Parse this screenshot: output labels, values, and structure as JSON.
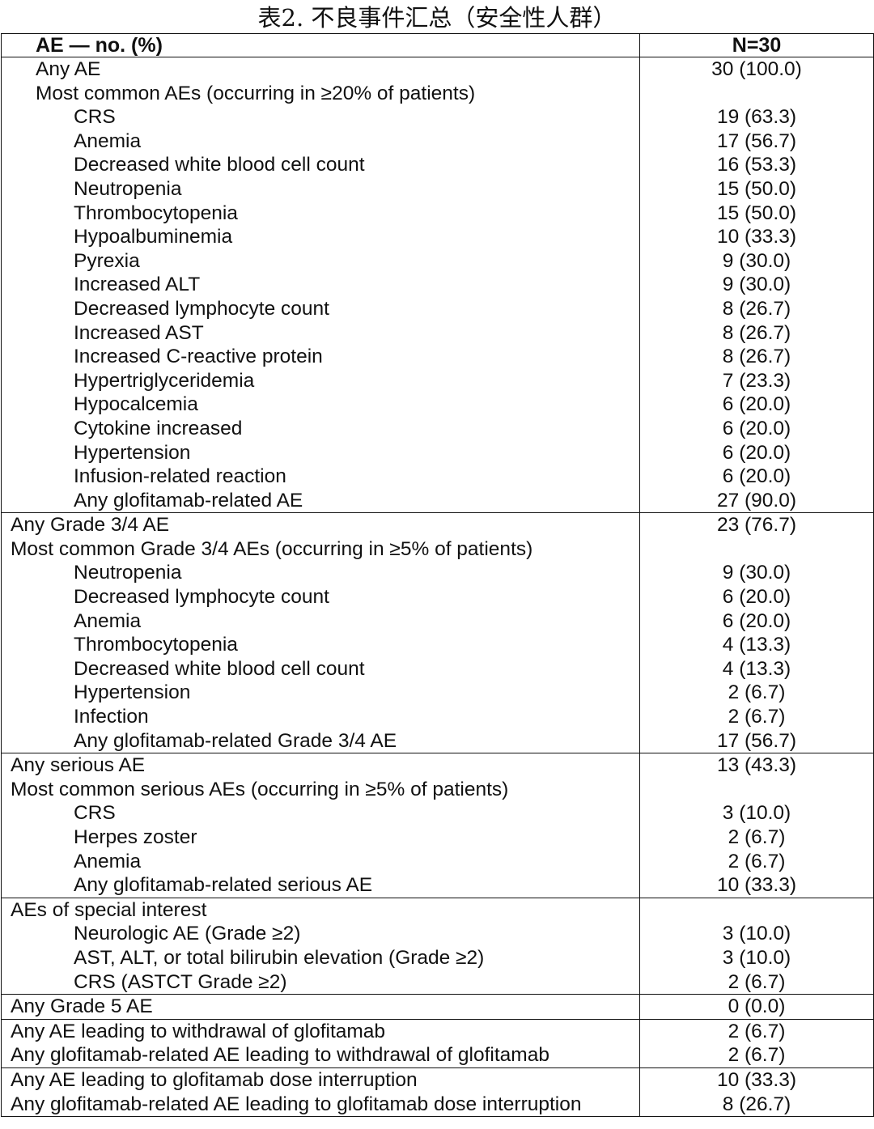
{
  "title": "表2. 不良事件汇总（安全性人群）",
  "header": {
    "col1": "AE — no. (%)",
    "col2": "N=30"
  },
  "sections": [
    {
      "id": "overall",
      "rows": [
        {
          "label": "Any AE",
          "value": "30 (100.0)",
          "indent": 1
        },
        {
          "label": "Most common AEs (occurring in ≥20% of patients)",
          "value": "",
          "indent": 1
        },
        {
          "label": "CRS",
          "value": "19 (63.3)",
          "indent": 2
        },
        {
          "label": "Anemia",
          "value": "17 (56.7)",
          "indent": 2
        },
        {
          "label": "Decreased white blood cell count",
          "value": "16 (53.3)",
          "indent": 2
        },
        {
          "label": "Neutropenia",
          "value": "15 (50.0)",
          "indent": 2
        },
        {
          "label": "Thrombocytopenia",
          "value": "15 (50.0)",
          "indent": 2
        },
        {
          "label": "Hypoalbuminemia",
          "value": "10 (33.3)",
          "indent": 2
        },
        {
          "label": "Pyrexia",
          "value": "9 (30.0)",
          "indent": 2
        },
        {
          "label": "Increased ALT",
          "value": "9 (30.0)",
          "indent": 2
        },
        {
          "label": "Decreased lymphocyte count",
          "value": "8 (26.7)",
          "indent": 2
        },
        {
          "label": "Increased AST",
          "value": "8 (26.7)",
          "indent": 2
        },
        {
          "label": "Increased C-reactive protein",
          "value": "8 (26.7)",
          "indent": 2
        },
        {
          "label": "Hypertriglyceridemia",
          "value": "7 (23.3)",
          "indent": 2
        },
        {
          "label": "Hypocalcemia",
          "value": "6 (20.0)",
          "indent": 2
        },
        {
          "label": "Cytokine increased",
          "value": "6 (20.0)",
          "indent": 2
        },
        {
          "label": "Hypertension",
          "value": "6 (20.0)",
          "indent": 2
        },
        {
          "label": "Infusion-related reaction",
          "value": "6 (20.0)",
          "indent": 2
        },
        {
          "label": "Any glofitamab-related AE",
          "value": "27 (90.0)",
          "indent": 2
        }
      ]
    },
    {
      "id": "grade34",
      "rows": [
        {
          "label": "Any Grade 3/4 AE",
          "value": "23 (76.7)",
          "indent": 0
        },
        {
          "label": "Most common Grade 3/4 AEs (occurring in ≥5% of patients)",
          "value": "",
          "indent": 0
        },
        {
          "label": "Neutropenia",
          "value": "9 (30.0)",
          "indent": 2
        },
        {
          "label": "Decreased lymphocyte count",
          "value": "6 (20.0)",
          "indent": 2
        },
        {
          "label": "Anemia",
          "value": "6 (20.0)",
          "indent": 2
        },
        {
          "label": "Thrombocytopenia",
          "value": "4 (13.3)",
          "indent": 2
        },
        {
          "label": "Decreased white blood cell count",
          "value": "4 (13.3)",
          "indent": 2
        },
        {
          "label": "Hypertension",
          "value": "2 (6.7)",
          "indent": 2
        },
        {
          "label": "Infection",
          "value": "2 (6.7)",
          "indent": 2
        },
        {
          "label": "Any glofitamab-related Grade 3/4 AE",
          "value": "17 (56.7)",
          "indent": 2
        }
      ]
    },
    {
      "id": "serious",
      "rows": [
        {
          "label": "Any serious AE",
          "value": "13 (43.3)",
          "indent": 0
        },
        {
          "label": "Most common serious AEs (occurring in ≥5% of patients)",
          "value": "",
          "indent": 0
        },
        {
          "label": "CRS",
          "value": "3 (10.0)",
          "indent": 2
        },
        {
          "label": "Herpes zoster",
          "value": "2 (6.7)",
          "indent": 2
        },
        {
          "label": "Anemia",
          "value": "2 (6.7)",
          "indent": 2
        },
        {
          "label": "Any glofitamab-related serious AE",
          "value": "10 (33.3)",
          "indent": 2
        }
      ]
    },
    {
      "id": "special",
      "rows": [
        {
          "label": "AEs of special interest",
          "value": "",
          "indent": 0
        },
        {
          "label": "Neurologic AE (Grade ≥2)",
          "value": "3 (10.0)",
          "indent": 2
        },
        {
          "label": "AST, ALT, or total bilirubin elevation (Grade ≥2)",
          "value": "3 (10.0)",
          "indent": 2
        },
        {
          "label": "CRS (ASTCT Grade ≥2)",
          "value": "2 (6.7)",
          "indent": 2
        }
      ]
    },
    {
      "id": "grade5",
      "rows": [
        {
          "label": "Any Grade 5 AE",
          "value": "0 (0.0)",
          "indent": 0
        }
      ]
    },
    {
      "id": "withdrawal",
      "rows": [
        {
          "label": "Any AE leading to withdrawal of glofitamab",
          "value": "2 (6.7)",
          "indent": 0
        },
        {
          "label": "Any glofitamab-related AE leading to withdrawal of glofitamab",
          "value": "2 (6.7)",
          "indent": 0
        }
      ]
    },
    {
      "id": "interruption",
      "rows": [
        {
          "label": "Any AE leading to glofitamab dose interruption",
          "value": "10 (33.3)",
          "indent": 0
        },
        {
          "label": "Any glofitamab-related AE leading to glofitamab dose interruption",
          "value": "8 (26.7)",
          "indent": 0
        }
      ]
    }
  ]
}
